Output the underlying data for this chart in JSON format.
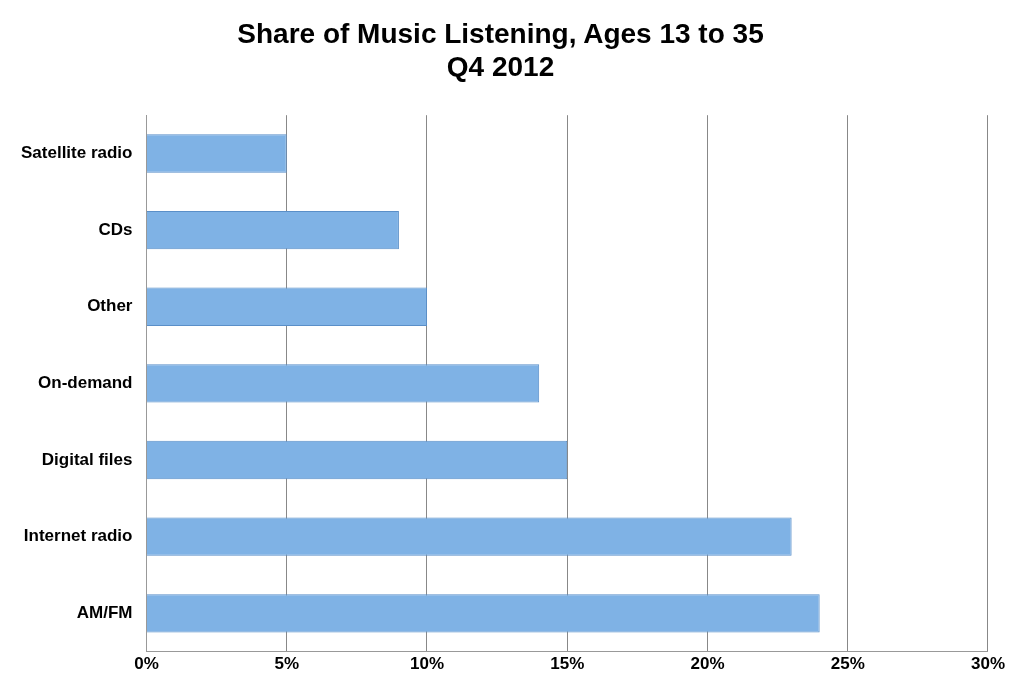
{
  "chart_data": {
    "type": "bar",
    "orientation": "horizontal",
    "title": "Share of Music Listening, Ages 13 to 35",
    "subtitle": "Q4 2012",
    "categories": [
      "Satellite radio",
      "CDs",
      "Other",
      "On-demand",
      "Digital files",
      "Internet radio",
      "AM/FM"
    ],
    "values": [
      5,
      9,
      10,
      14,
      15,
      23,
      24
    ],
    "color": "#7fb2e5",
    "xlim": [
      0,
      30
    ],
    "xticks": [
      {
        "value": 0,
        "label": "0%"
      },
      {
        "value": 5,
        "label": "5%"
      },
      {
        "value": 10,
        "label": "10%"
      },
      {
        "value": 15,
        "label": "15%"
      },
      {
        "value": 20,
        "label": "20%"
      },
      {
        "value": 25,
        "label": "25%"
      },
      {
        "value": 30,
        "label": "30%"
      }
    ],
    "grid": "x",
    "legend": false
  }
}
